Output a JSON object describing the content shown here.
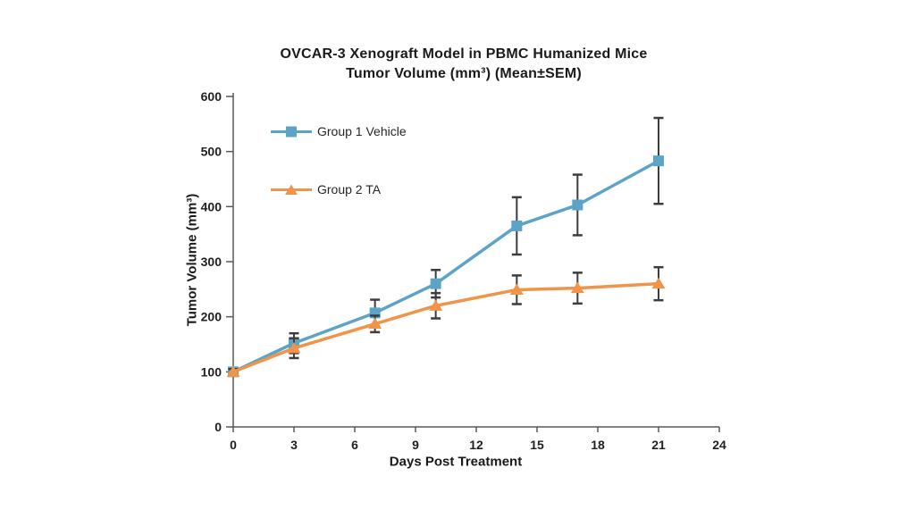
{
  "page": {
    "background": "#ffffff"
  },
  "chart_data": {
    "type": "line",
    "title_line1": "OVCAR-3 Xenograft Model in PBMC Humanized Mice",
    "title_line2": "Tumor Volume (mm³) (Mean±SEM)",
    "xlabel": "Days Post Treatment",
    "ylabel": "Tumor Volume (mm³)",
    "x": [
      0,
      3,
      7,
      10,
      14,
      17,
      21
    ],
    "series": [
      {
        "name": "Group 1 Vehicle",
        "color": "#5BA4C7",
        "marker": "square",
        "values": [
          100,
          152,
          207,
          260,
          365,
          403,
          483
        ],
        "sem": [
          6,
          18,
          24,
          25,
          52,
          55,
          78
        ]
      },
      {
        "name": "Group 2 TA",
        "color": "#F0944A",
        "marker": "triangle",
        "values": [
          100,
          143,
          187,
          220,
          249,
          252,
          260
        ],
        "sem": [
          5,
          18,
          15,
          23,
          26,
          28,
          30
        ]
      }
    ],
    "xlim": [
      0,
      24
    ],
    "ylim": [
      0,
      600
    ],
    "x_ticks": [
      0,
      3,
      6,
      9,
      12,
      15,
      18,
      21,
      24
    ],
    "y_ticks": [
      0,
      100,
      200,
      300,
      400,
      500,
      600
    ],
    "grid": false,
    "legend_position": "upper-left-inside",
    "error_bar_color": "#3d3d3d",
    "axis_color": "#595959",
    "text_color": "#1f1f1f"
  }
}
